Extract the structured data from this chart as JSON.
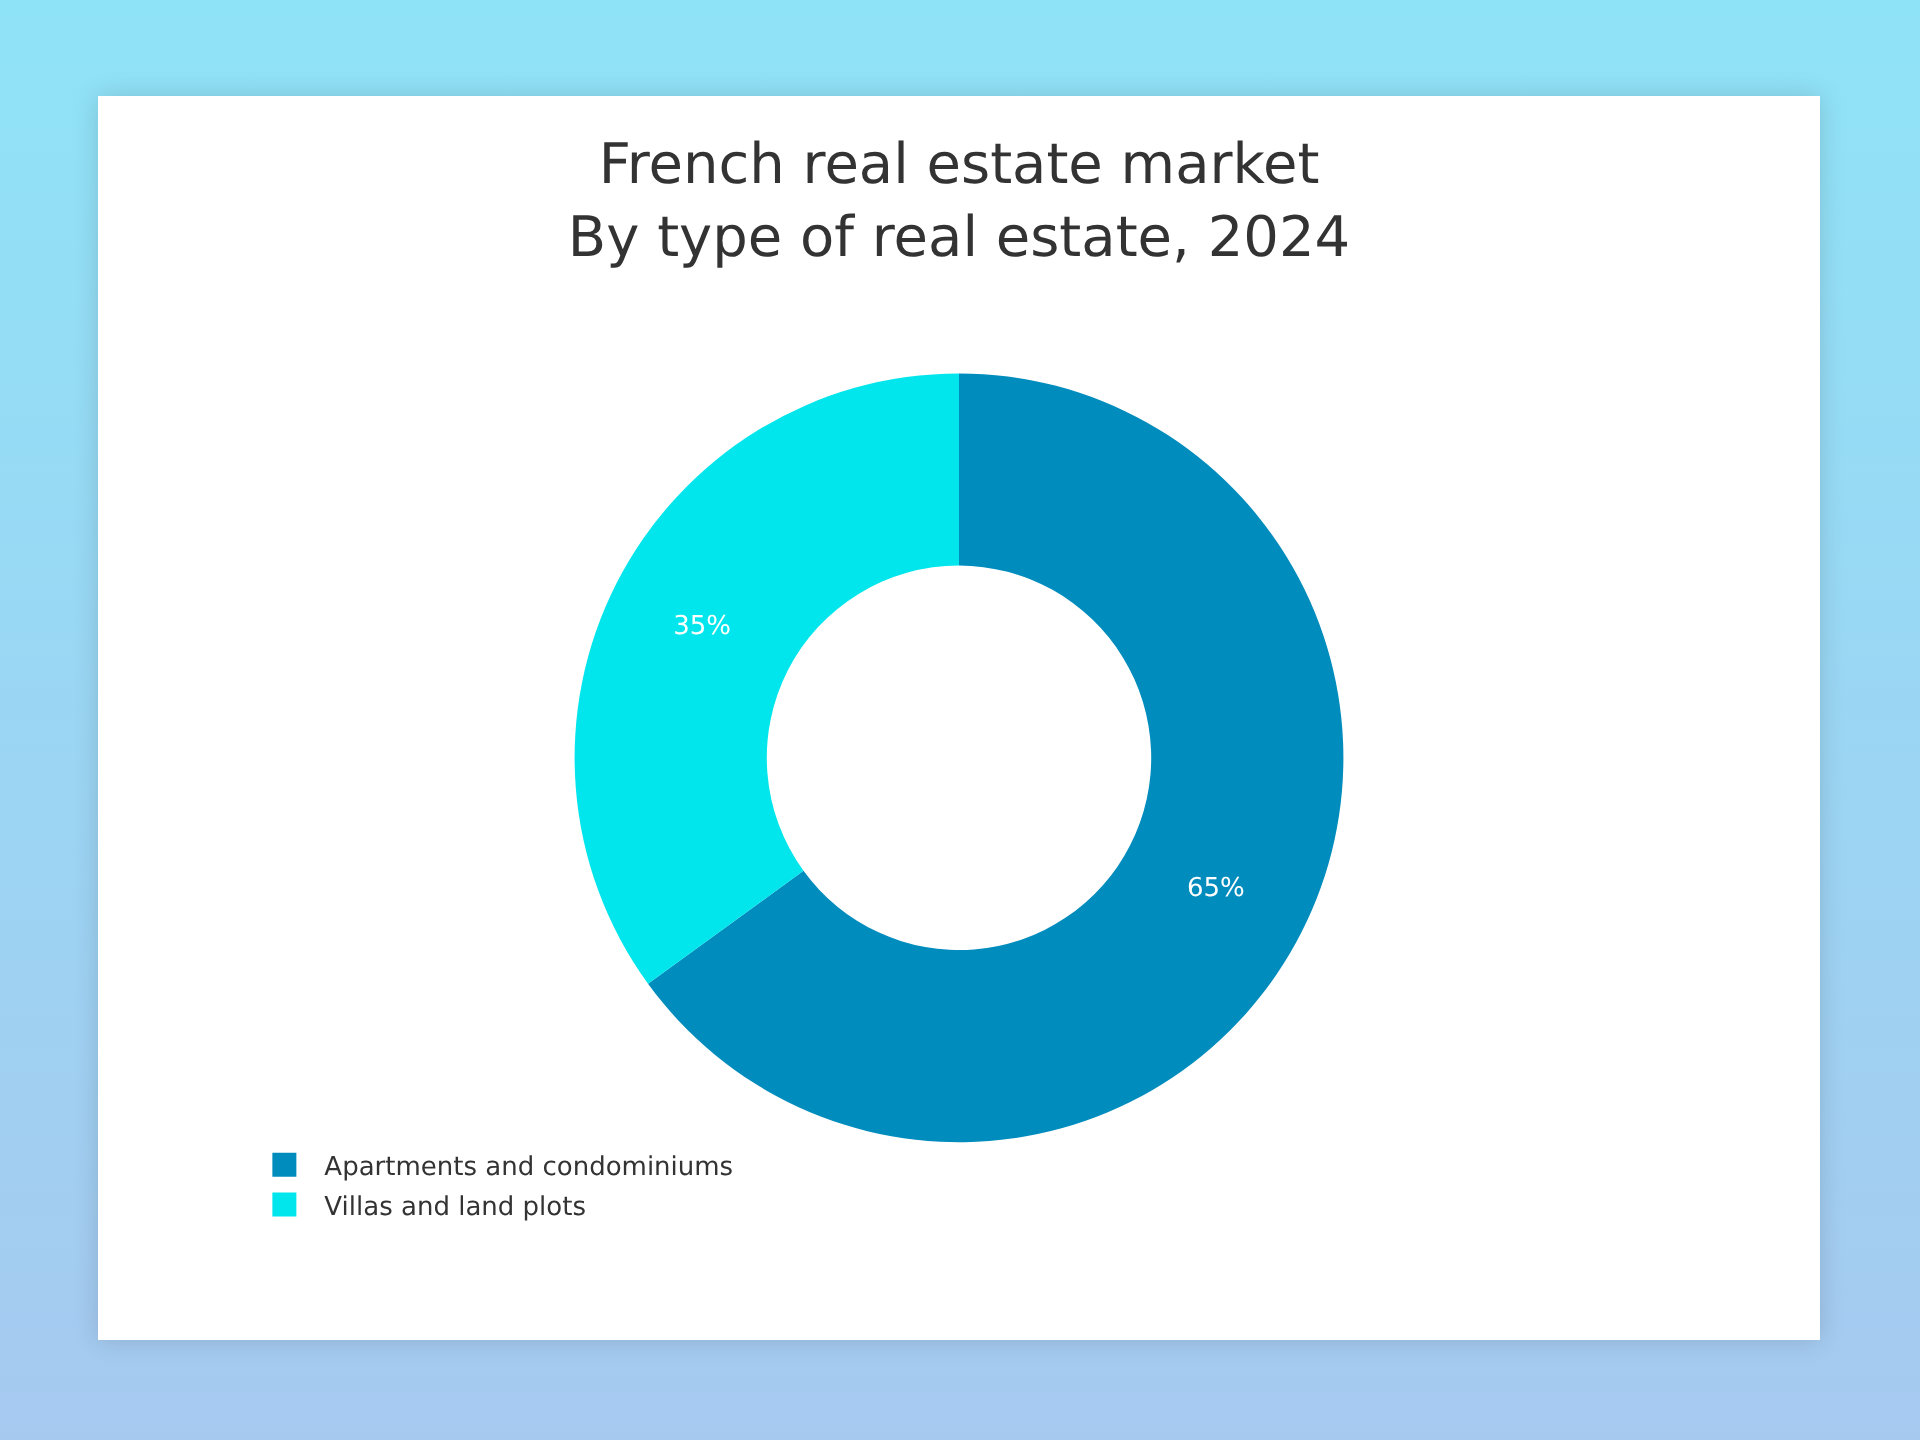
{
  "chart_data": {
    "type": "donut",
    "title": "French real estate market",
    "subtitle": "By type of real estate, 2024",
    "categories": [
      "Apartments and condominiums",
      "Villas and land plots"
    ],
    "values": [
      65,
      35
    ],
    "value_labels": [
      "65%",
      "35%"
    ],
    "colors": [
      "#008cbd",
      "#00e6ec"
    ],
    "legend": "bottom left"
  }
}
